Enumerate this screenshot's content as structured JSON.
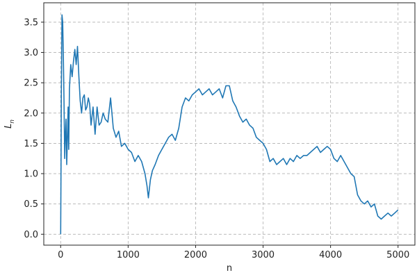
{
  "chart_data": {
    "type": "line",
    "title": "",
    "xlabel": "n",
    "ylabel": "L_n",
    "ylabel_main": "L",
    "ylabel_sub": "n",
    "xlim": [
      -250,
      5250
    ],
    "ylim": [
      -0.18,
      3.82
    ],
    "grid": true,
    "xticks": [
      0,
      1000,
      2000,
      3000,
      4000,
      5000
    ],
    "xtick_labels": [
      "0",
      "1000",
      "2000",
      "3000",
      "4000",
      "5000"
    ],
    "yticks": [
      0.0,
      0.5,
      1.0,
      1.5,
      2.0,
      2.5,
      3.0,
      3.5
    ],
    "ytick_labels": [
      "0.0",
      "0.5",
      "1.0",
      "1.5",
      "2.0",
      "2.5",
      "3.0",
      "3.5"
    ],
    "series": [
      {
        "color": "#1f77b4",
        "x": [
          0,
          5,
          10,
          20,
          30,
          40,
          50,
          60,
          70,
          80,
          90,
          100,
          110,
          120,
          130,
          150,
          170,
          190,
          210,
          230,
          250,
          270,
          290,
          310,
          330,
          350,
          370,
          390,
          410,
          430,
          450,
          480,
          510,
          540,
          570,
          600,
          630,
          660,
          700,
          740,
          780,
          820,
          860,
          900,
          950,
          1000,
          1050,
          1100,
          1150,
          1200,
          1250,
          1280,
          1300,
          1330,
          1360,
          1400,
          1450,
          1500,
          1550,
          1600,
          1650,
          1700,
          1750,
          1800,
          1850,
          1900,
          1950,
          2000,
          2050,
          2100,
          2150,
          2200,
          2250,
          2300,
          2350,
          2400,
          2450,
          2500,
          2550,
          2600,
          2650,
          2700,
          2750,
          2800,
          2850,
          2900,
          2950,
          3000,
          3050,
          3100,
          3150,
          3200,
          3250,
          3300,
          3350,
          3400,
          3450,
          3500,
          3550,
          3600,
          3650,
          3700,
          3750,
          3800,
          3850,
          3900,
          3950,
          4000,
          4050,
          4100,
          4150,
          4200,
          4250,
          4300,
          4350,
          4400,
          4450,
          4500,
          4550,
          4600,
          4650,
          4700,
          4750,
          4800,
          4850,
          4900,
          4950,
          5000
        ],
        "y": [
          0.0,
          1.1,
          2.2,
          3.62,
          3.5,
          2.9,
          2.2,
          1.25,
          1.65,
          1.9,
          1.15,
          1.6,
          2.1,
          1.4,
          2.4,
          2.8,
          2.6,
          2.85,
          3.05,
          2.8,
          3.1,
          2.6,
          2.2,
          2.0,
          2.25,
          2.3,
          2.05,
          2.1,
          2.25,
          2.15,
          1.8,
          2.1,
          1.65,
          2.1,
          1.8,
          1.85,
          2.0,
          1.9,
          1.85,
          2.25,
          1.75,
          1.6,
          1.7,
          1.45,
          1.5,
          1.4,
          1.35,
          1.2,
          1.3,
          1.2,
          1.0,
          0.8,
          0.6,
          0.9,
          1.05,
          1.15,
          1.3,
          1.4,
          1.5,
          1.6,
          1.65,
          1.55,
          1.75,
          2.1,
          2.25,
          2.2,
          2.3,
          2.35,
          2.4,
          2.3,
          2.35,
          2.4,
          2.3,
          2.35,
          2.4,
          2.25,
          2.45,
          2.45,
          2.2,
          2.1,
          1.95,
          1.85,
          1.9,
          1.8,
          1.75,
          1.6,
          1.55,
          1.5,
          1.4,
          1.2,
          1.25,
          1.15,
          1.2,
          1.25,
          1.15,
          1.25,
          1.2,
          1.3,
          1.25,
          1.3,
          1.3,
          1.35,
          1.4,
          1.45,
          1.35,
          1.4,
          1.45,
          1.4,
          1.25,
          1.2,
          1.3,
          1.2,
          1.1,
          1.0,
          0.95,
          0.65,
          0.55,
          0.5,
          0.55,
          0.45,
          0.5,
          0.3,
          0.25,
          0.3,
          0.35,
          0.3,
          0.35,
          0.4
        ]
      }
    ]
  }
}
